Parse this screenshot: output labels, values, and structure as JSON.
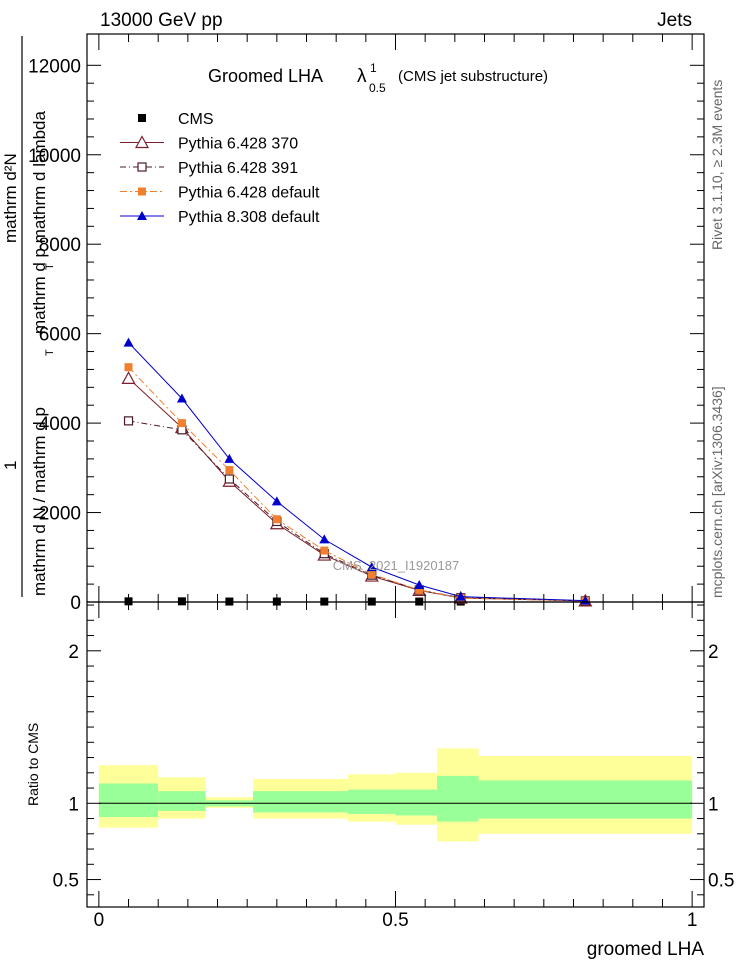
{
  "header": {
    "left": "13000 GeV pp",
    "right": "Jets"
  },
  "side_labels": {
    "rivet": "Rivet 3.1.10, ≥ 2.3M events",
    "mcplots": "mcplots.cern.ch [arXiv:1306.3436]"
  },
  "watermark": "CMS_2021_I1920187",
  "colors": {
    "cms": "#000000",
    "p370": "#7b1f2a",
    "p391": "#4a1a24",
    "p6def": "#f08030",
    "p8def": "#0000cc",
    "band_inner": "#99ff99",
    "band_outer": "#ffff99"
  },
  "chart_data": [
    {
      "type": "line",
      "title_main": "Groomed LHA",
      "title_lambda": "λ",
      "title_sup": "1",
      "title_sub": "0.5",
      "title_paren": "(CMS jet substructure)",
      "ylabel_top": "mathrm d²N",
      "ylabel_top2": "mathrm d p   mathrm d lambda",
      "ylabel_top2_sub": "T",
      "ylabel_one": "1",
      "ylabel_bottom": "mathrm d N / mathrm d p",
      "ylabel_bottom_sub": "T",
      "ylim": [
        0,
        12700
      ],
      "yticks": [
        0,
        2000,
        4000,
        6000,
        8000,
        10000,
        12000
      ],
      "ytick_labels": [
        "0",
        "2000",
        "4000",
        "6000",
        "8000",
        "10000",
        "12000"
      ],
      "x": [
        0.05,
        0.14,
        0.22,
        0.3,
        0.38,
        0.46,
        0.54,
        0.61,
        0.82
      ],
      "series": [
        {
          "name": "CMS",
          "key": "cms",
          "marker": "square-filled",
          "y": [
            15,
            15,
            10,
            10,
            10,
            10,
            10,
            10,
            10
          ]
        },
        {
          "name": "Pythia 6.428 370",
          "key": "p370",
          "marker": "triangle-open",
          "y": [
            5000,
            3900,
            2700,
            1750,
            1050,
            580,
            260,
            90,
            25
          ]
        },
        {
          "name": "Pythia 6.428 391",
          "key": "p391",
          "marker": "square-open",
          "y": [
            4050,
            3850,
            2750,
            1800,
            1080,
            600,
            270,
            95,
            25
          ]
        },
        {
          "name": "Pythia 6.428 default",
          "key": "p6def",
          "marker": "square-filled",
          "y": [
            5250,
            4000,
            2950,
            1850,
            1150,
            620,
            270,
            85,
            22
          ]
        },
        {
          "name": "Pythia 8.308 default",
          "key": "p8def",
          "marker": "triangle-filled",
          "y": [
            5800,
            4550,
            3200,
            2250,
            1400,
            780,
            380,
            120,
            30
          ]
        }
      ]
    },
    {
      "type": "area",
      "ylabel": "Ratio to CMS",
      "xlabel": "groomed LHA",
      "xlim": [
        -0.02,
        1.02
      ],
      "xticks": [
        0,
        0.5,
        1
      ],
      "xtick_labels": [
        "0",
        "0.5",
        "1"
      ],
      "ylim": [
        0.32,
        2.32
      ],
      "yticks": [
        0.5,
        1,
        2
      ],
      "ytick_labels": [
        "0.5",
        "1",
        "2"
      ],
      "bins": [
        {
          "x0": 0.0,
          "x1": 0.1,
          "inner": [
            0.91,
            1.13
          ],
          "outer": [
            0.84,
            1.25
          ]
        },
        {
          "x0": 0.1,
          "x1": 0.18,
          "inner": [
            0.95,
            1.08
          ],
          "outer": [
            0.9,
            1.17
          ]
        },
        {
          "x0": 0.18,
          "x1": 0.26,
          "inner": [
            0.98,
            1.02
          ],
          "outer": [
            0.97,
            1.04
          ]
        },
        {
          "x0": 0.26,
          "x1": 0.42,
          "inner": [
            0.94,
            1.08
          ],
          "outer": [
            0.9,
            1.16
          ]
        },
        {
          "x0": 0.42,
          "x1": 0.5,
          "inner": [
            0.93,
            1.09
          ],
          "outer": [
            0.88,
            1.19
          ]
        },
        {
          "x0": 0.5,
          "x1": 0.57,
          "inner": [
            0.92,
            1.09
          ],
          "outer": [
            0.86,
            1.2
          ]
        },
        {
          "x0": 0.57,
          "x1": 0.64,
          "inner": [
            0.88,
            1.18
          ],
          "outer": [
            0.75,
            1.36
          ]
        },
        {
          "x0": 0.64,
          "x1": 1.0,
          "inner": [
            0.9,
            1.15
          ],
          "outer": [
            0.8,
            1.31
          ]
        }
      ]
    }
  ]
}
